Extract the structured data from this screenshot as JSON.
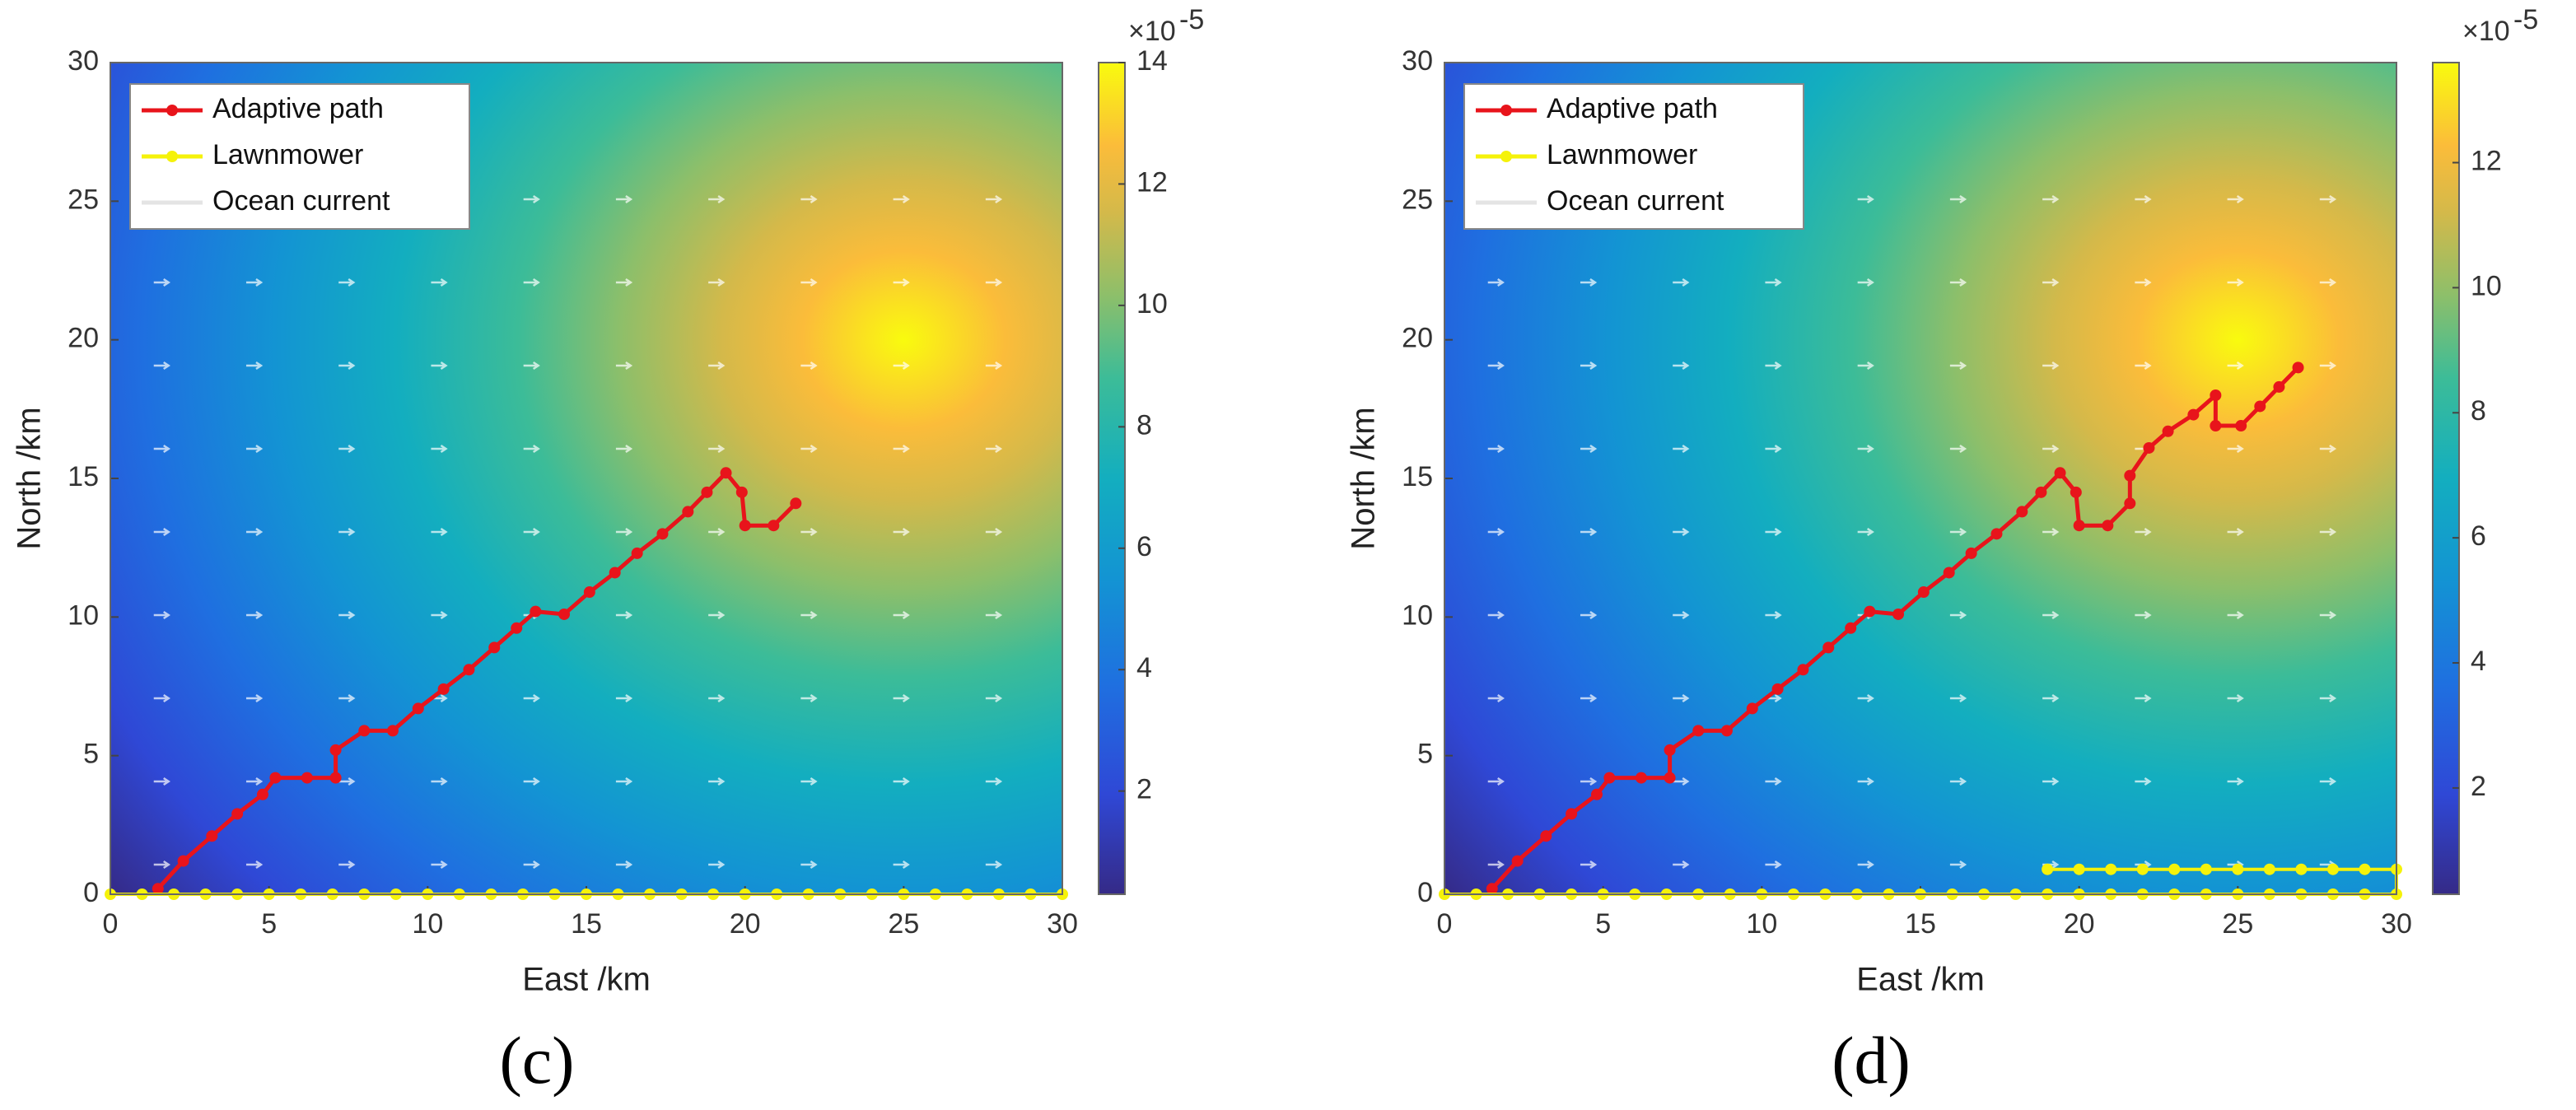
{
  "chart_data": [
    {
      "type": "line",
      "caption": "(c)",
      "xlabel": "East /km",
      "ylabel": "North /km",
      "xlim": [
        0,
        30
      ],
      "ylim": [
        0,
        30
      ],
      "xticks": [
        0,
        5,
        10,
        15,
        20,
        25,
        30
      ],
      "yticks": [
        0,
        5,
        10,
        15,
        20,
        25,
        30
      ],
      "legend": "upper left",
      "series": [
        {
          "name": "Adaptive path",
          "color": "#e8141b",
          "x": [
            1.5,
            2.3,
            3.2,
            4.0,
            4.8,
            5.2,
            6.2,
            7.1,
            7.1,
            8.0,
            8.9,
            9.7,
            10.5,
            11.3,
            12.1,
            12.8,
            13.4,
            14.3,
            15.1,
            15.9,
            16.6,
            17.4,
            18.2,
            18.8,
            19.4,
            19.9,
            20.0,
            20.9,
            21.6
          ],
          "values": [
            0.2,
            1.2,
            2.1,
            2.9,
            3.6,
            4.2,
            4.2,
            4.2,
            5.2,
            5.9,
            5.9,
            6.7,
            7.4,
            8.1,
            8.9,
            9.6,
            10.2,
            10.1,
            10.9,
            11.6,
            12.3,
            13.0,
            13.8,
            14.5,
            15.2,
            14.5,
            13.3,
            13.3,
            14.1
          ]
        },
        {
          "name": "Lawnmower",
          "color": "#f5f20a",
          "x": [
            0,
            1,
            2,
            3,
            4,
            5,
            6,
            7,
            8,
            9,
            10,
            11,
            12,
            13,
            14,
            15,
            16,
            17,
            18,
            19,
            20,
            21,
            22,
            23,
            24,
            25,
            26,
            27,
            28,
            29,
            30
          ],
          "values": [
            0,
            0,
            0,
            0,
            0,
            0,
            0,
            0,
            0,
            0,
            0,
            0,
            0,
            0,
            0,
            0,
            0,
            0,
            0,
            0,
            0,
            0,
            0,
            0,
            0,
            0,
            0,
            0,
            0,
            0,
            0
          ]
        },
        {
          "name": "Ocean current",
          "color": "#ffffff"
        }
      ],
      "colorbar": {
        "clim": [
          0.3,
          14
        ],
        "ticks": [
          2,
          4,
          6,
          8,
          10,
          12,
          14
        ],
        "multiplier": "×10",
        "exponent": "-5"
      }
    },
    {
      "type": "line",
      "caption": "(d)",
      "xlabel": "East /km",
      "ylabel": "North /km",
      "xlim": [
        0,
        30
      ],
      "ylim": [
        0,
        30
      ],
      "xticks": [
        0,
        5,
        10,
        15,
        20,
        25,
        30
      ],
      "yticks": [
        0,
        5,
        10,
        15,
        20,
        25,
        30
      ],
      "legend": "upper left",
      "series": [
        {
          "name": "Adaptive path",
          "color": "#e8141b",
          "x": [
            1.5,
            2.3,
            3.2,
            4.0,
            4.8,
            5.2,
            6.2,
            7.1,
            7.1,
            8.0,
            8.9,
            9.7,
            10.5,
            11.3,
            12.1,
            12.8,
            13.4,
            14.3,
            15.1,
            15.9,
            16.6,
            17.4,
            18.2,
            18.8,
            19.4,
            19.9,
            20.0,
            20.9,
            21.6,
            21.6,
            22.2,
            22.8,
            23.6,
            24.3,
            24.3,
            25.1,
            25.7,
            26.3,
            26.9
          ],
          "values": [
            0.2,
            1.2,
            2.1,
            2.9,
            3.6,
            4.2,
            4.2,
            4.2,
            5.2,
            5.9,
            5.9,
            6.7,
            7.4,
            8.1,
            8.9,
            9.6,
            10.2,
            10.1,
            10.9,
            11.6,
            12.3,
            13.0,
            13.8,
            14.5,
            15.2,
            14.5,
            13.3,
            13.3,
            14.1,
            15.1,
            16.1,
            16.7,
            17.3,
            18.0,
            16.9,
            16.9,
            17.6,
            18.3,
            19.0
          ]
        },
        {
          "name": "Lawnmower",
          "color": "#f5f20a",
          "x": [
            0,
            1,
            2,
            3,
            4,
            5,
            6,
            7,
            8,
            9,
            10,
            11,
            12,
            13,
            14,
            15,
            16,
            17,
            18,
            19,
            20,
            21,
            22,
            23,
            24,
            25,
            26,
            27,
            28,
            29,
            30,
            30,
            29,
            28,
            27,
            26,
            25,
            24,
            23,
            22,
            21,
            20,
            19
          ],
          "values": [
            0,
            0,
            0,
            0,
            0,
            0,
            0,
            0,
            0,
            0,
            0,
            0,
            0,
            0,
            0,
            0,
            0,
            0,
            0,
            0,
            0,
            0,
            0,
            0,
            0,
            0,
            0,
            0,
            0,
            0,
            0,
            0.9,
            0.9,
            0.9,
            0.9,
            0.9,
            0.9,
            0.9,
            0.9,
            0.9,
            0.9,
            0.9,
            0.9
          ]
        },
        {
          "name": "Ocean current",
          "color": "#ffffff"
        }
      ],
      "colorbar": {
        "clim": [
          0.3,
          13.6
        ],
        "ticks": [
          2,
          4,
          6,
          8,
          10,
          12
        ],
        "multiplier": "×10",
        "exponent": "-5"
      }
    }
  ]
}
